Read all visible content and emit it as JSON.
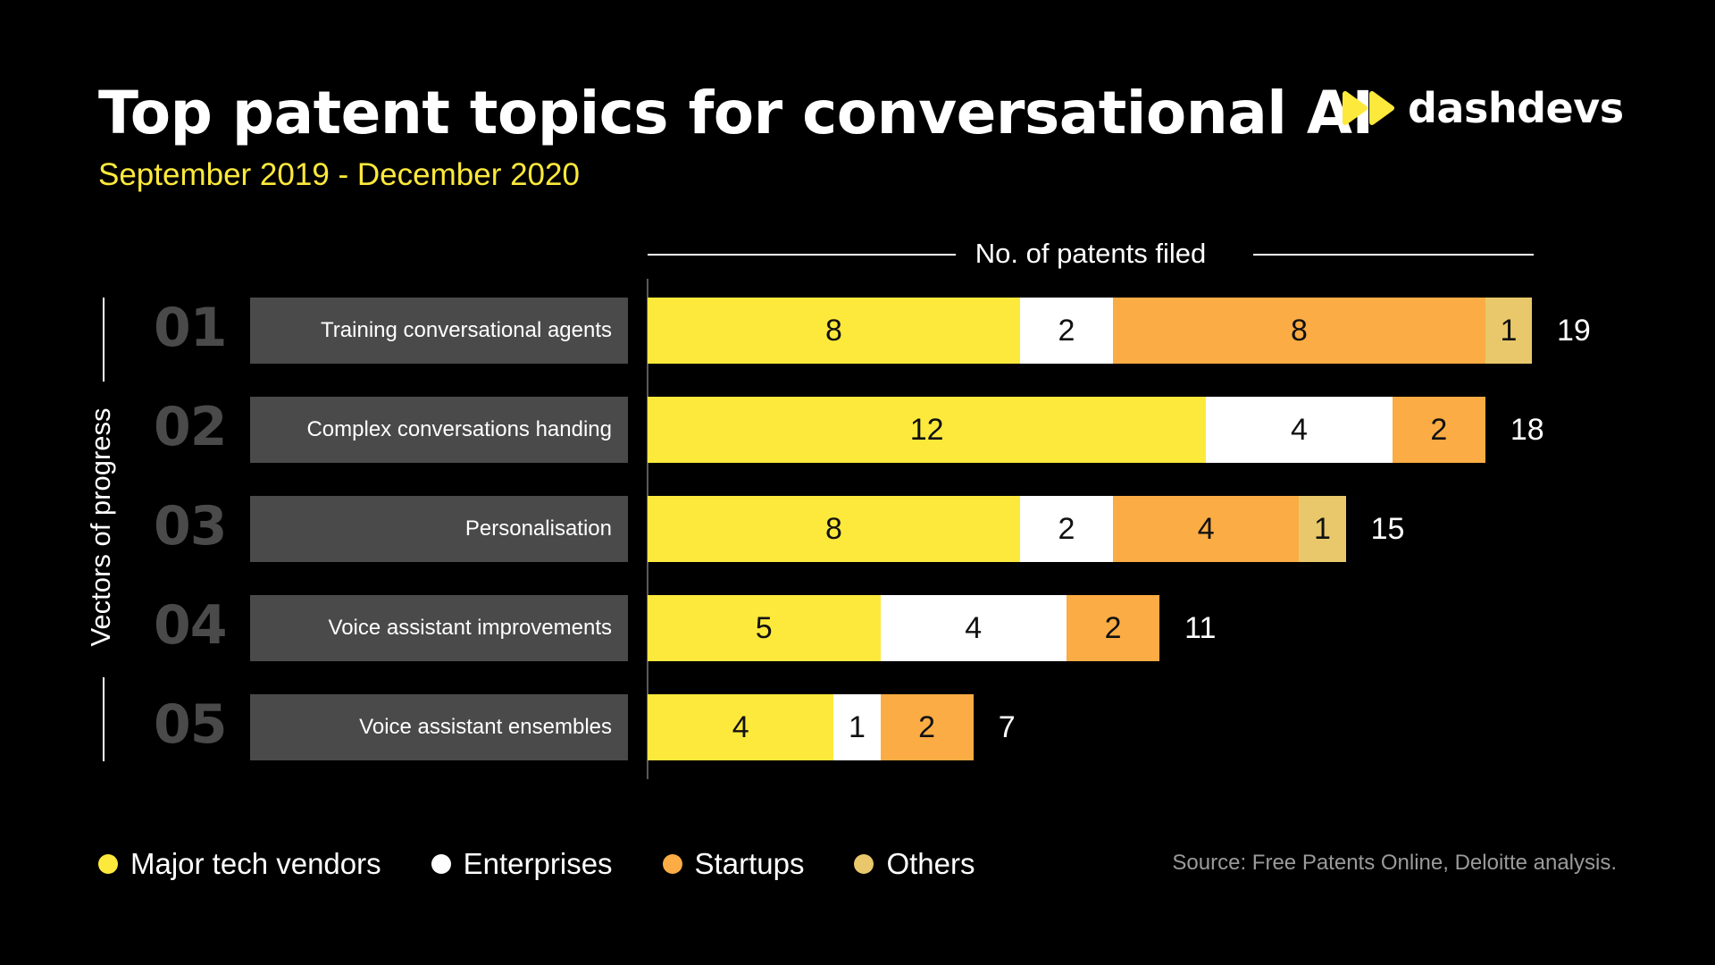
{
  "title": "Top patent topics for conversational AI",
  "subtitle": "September 2019 - December 2020",
  "logo": {
    "text": "dashdevs",
    "icon": "double-play-icon",
    "color": "#fde93b"
  },
  "source": "Source: Free Patents Online, Deloitte analysis.",
  "colors": {
    "major_tech_vendors": "#fde93b",
    "enterprises": "#ffffff",
    "startups": "#fbac44",
    "others": "#e8c86a",
    "label_bg": "#4a4a4a",
    "row_number": "#4a4a4a"
  },
  "chart_data": {
    "type": "bar",
    "orientation": "horizontal",
    "stacked": true,
    "title": "Top patent topics for conversational AI",
    "subtitle": "September 2019 - December 2020",
    "xlabel": "No. of patents filed",
    "ylabel": "Vectors of progress",
    "xlim": [
      0,
      19
    ],
    "grid": false,
    "legend_position": "bottom-left",
    "row_numbers": [
      "01",
      "02",
      "03",
      "04",
      "05"
    ],
    "categories": [
      "Training conversational agents",
      "Complex conversations handing",
      "Personalisation",
      "Voice assistant improvements",
      "Voice assistant ensembles"
    ],
    "series": [
      {
        "name": "Major tech vendors",
        "key": "major_tech_vendors",
        "values": [
          8,
          12,
          8,
          5,
          4
        ]
      },
      {
        "name": "Enterprises",
        "key": "enterprises",
        "values": [
          2,
          4,
          2,
          4,
          1
        ]
      },
      {
        "name": "Startups",
        "key": "startups",
        "values": [
          8,
          2,
          4,
          2,
          2
        ]
      },
      {
        "name": "Others",
        "key": "others",
        "values": [
          1,
          0,
          1,
          0,
          0
        ]
      }
    ],
    "totals": [
      19,
      18,
      15,
      11,
      7
    ]
  }
}
